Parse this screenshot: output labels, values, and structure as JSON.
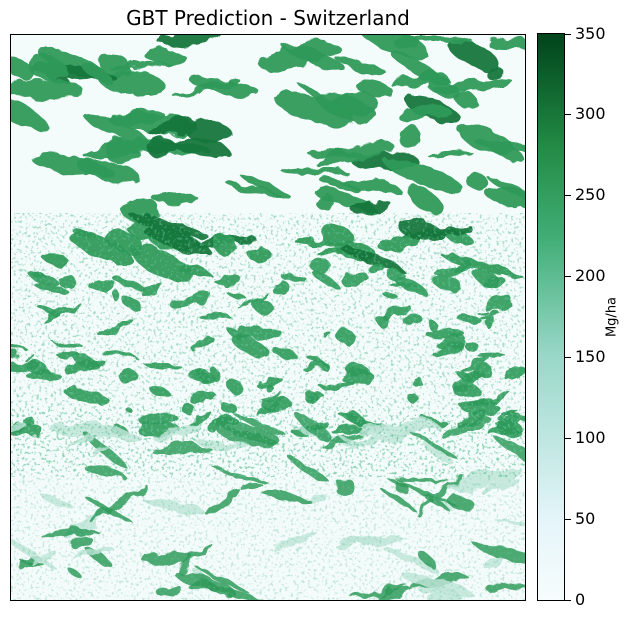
{
  "title": "GBT Prediction - Switzerland",
  "colorbar": {
    "label": "Mg/ha",
    "ticks": [
      "0",
      "50",
      "100",
      "150",
      "200",
      "250",
      "300",
      "350"
    ],
    "min": 0,
    "max": 350,
    "colormap": "BuGn",
    "colors": {
      "low": "#f7fcfd",
      "mid_low": "#e5f5f9",
      "mid": "#99d8c9",
      "mid_high": "#41ae76",
      "high": "#238b45",
      "max": "#00441b"
    }
  },
  "map": {
    "description_colors": {
      "background": "#f4fbfb",
      "forest": "#2e9a5a",
      "dense_forest": "#17773c",
      "sparse": "#bfe5d8"
    }
  }
}
